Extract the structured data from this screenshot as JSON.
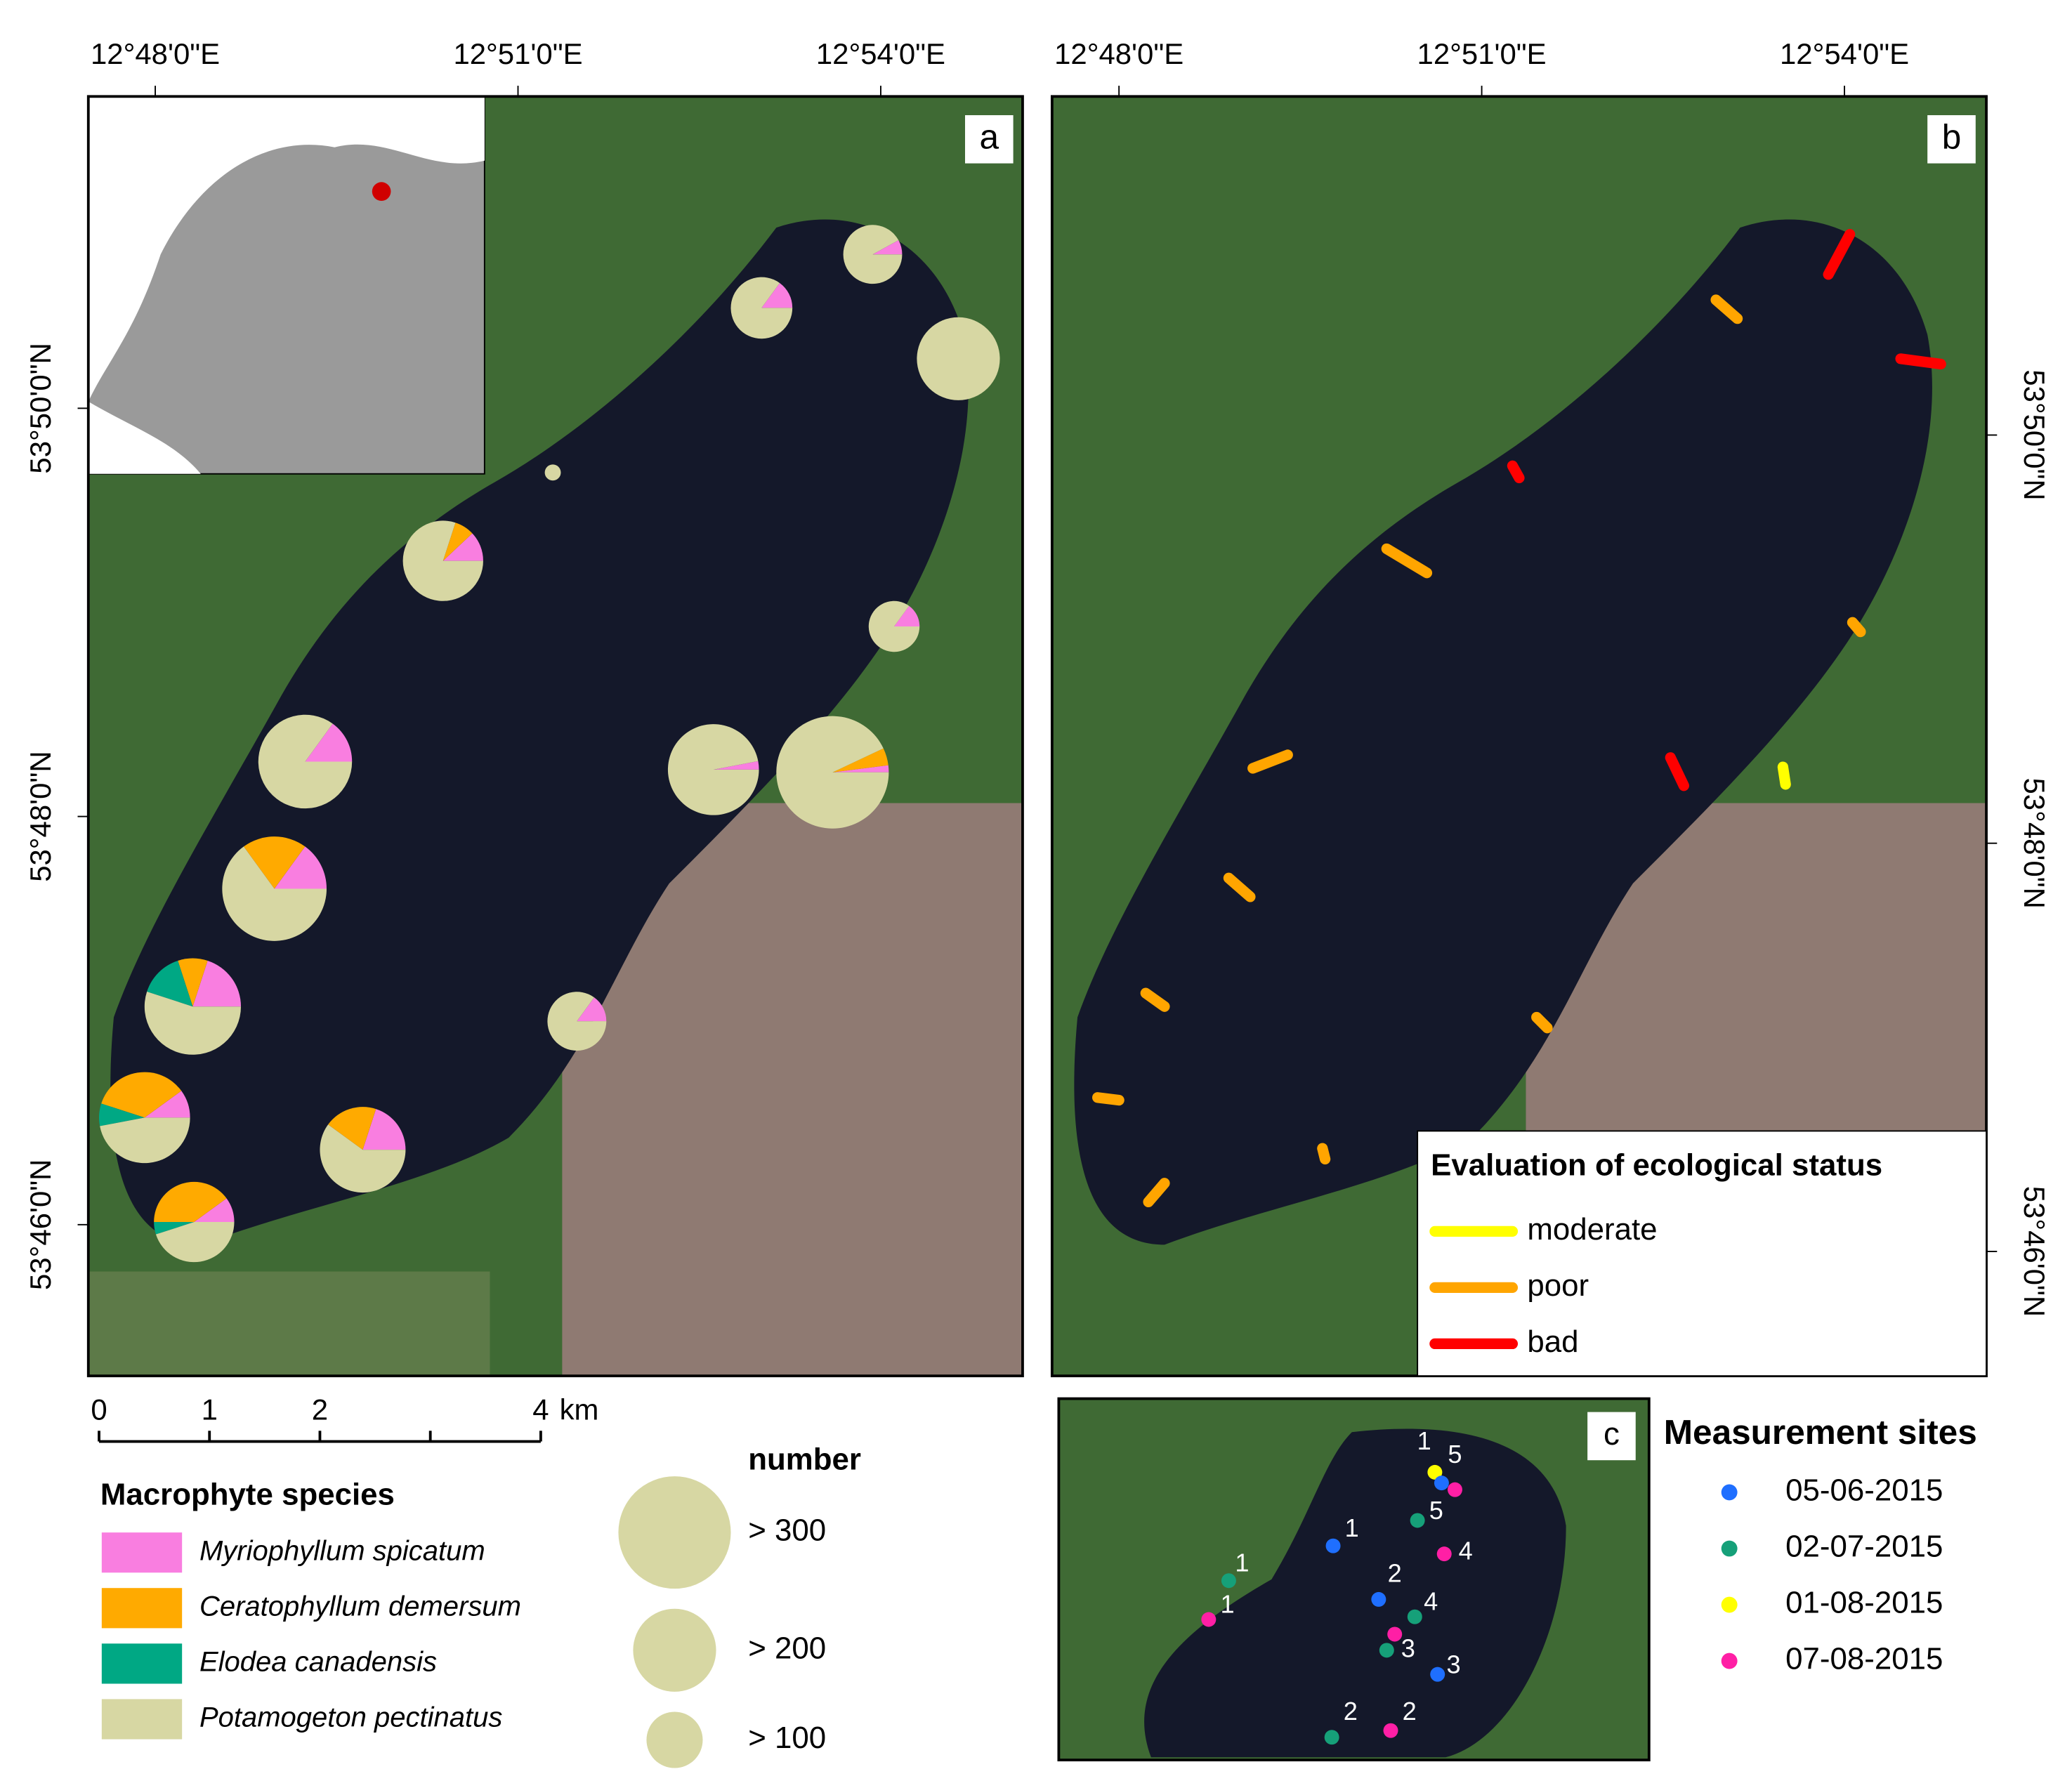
{
  "panel_a": {
    "letter": "a"
  },
  "panel_b": {
    "letter": "b"
  },
  "panel_c": {
    "letter": "c"
  },
  "x_labels": [
    "12°48'0\"E",
    "12°51'0\"E",
    "12°54'0\"E"
  ],
  "y_labels": [
    "53°50'0\"N",
    "53°48'0\"N",
    "53°46'0\"N"
  ],
  "scale_bar": {
    "ticks": [
      0,
      1,
      2,
      4
    ],
    "unit": "km"
  },
  "species_legend": {
    "title": "Macrophyte species",
    "items": [
      {
        "name": "Myriophyllum spicatum",
        "color": "#f97ee0"
      },
      {
        "name": "Ceratophyllum demersum",
        "color": "#ffaa00"
      },
      {
        "name": "Elodea canadensis",
        "color": "#00a884"
      },
      {
        "name": "Potamogeton pectinatus",
        "color": "#d7d7a3"
      }
    ]
  },
  "number_legend": {
    "title": "number",
    "classes": [
      {
        "value": 300,
        "label": "> 300"
      },
      {
        "value": 200,
        "label": "> 200"
      },
      {
        "value": 100,
        "label": "> 100"
      }
    ]
  },
  "pies": [
    [
      8,
      0,
      0,
      92
    ],
    [
      15,
      0,
      0,
      85
    ],
    [
      0,
      0,
      0,
      100
    ],
    [
      0,
      0,
      0,
      100
    ],
    [
      12,
      8,
      0,
      80
    ],
    [
      15,
      0,
      0,
      85
    ],
    [
      15,
      0,
      0,
      85
    ],
    [
      3,
      0,
      0,
      97
    ],
    [
      2,
      5,
      0,
      93
    ],
    [
      15,
      20,
      0,
      65
    ],
    [
      20,
      10,
      15,
      55
    ],
    [
      15,
      0,
      0,
      85
    ],
    [
      10,
      35,
      8,
      47
    ],
    [
      20,
      20,
      0,
      60
    ],
    [
      10,
      40,
      5,
      45
    ]
  ],
  "status_legend": {
    "title": "Evaluation of ecological status",
    "classes": [
      {
        "name": "moderate",
        "color": "#ffff00"
      },
      {
        "name": "poor",
        "color": "#ffa500"
      },
      {
        "name": "bad",
        "color": "#ff0000"
      }
    ]
  },
  "sites_legend": {
    "title": "Measurement sites",
    "dates": [
      {
        "name": "05-06-2015",
        "color": "#1f6fff"
      },
      {
        "name": "02-07-2015",
        "color": "#16a079"
      },
      {
        "name": "01-08-2015",
        "color": "#ffff00"
      },
      {
        "name": "07-08-2015",
        "color": "#ff1fa5"
      }
    ]
  },
  "site_labels": [
    1,
    5,
    5,
    1,
    4,
    1,
    2,
    4,
    1,
    3,
    3,
    2,
    2
  ]
}
